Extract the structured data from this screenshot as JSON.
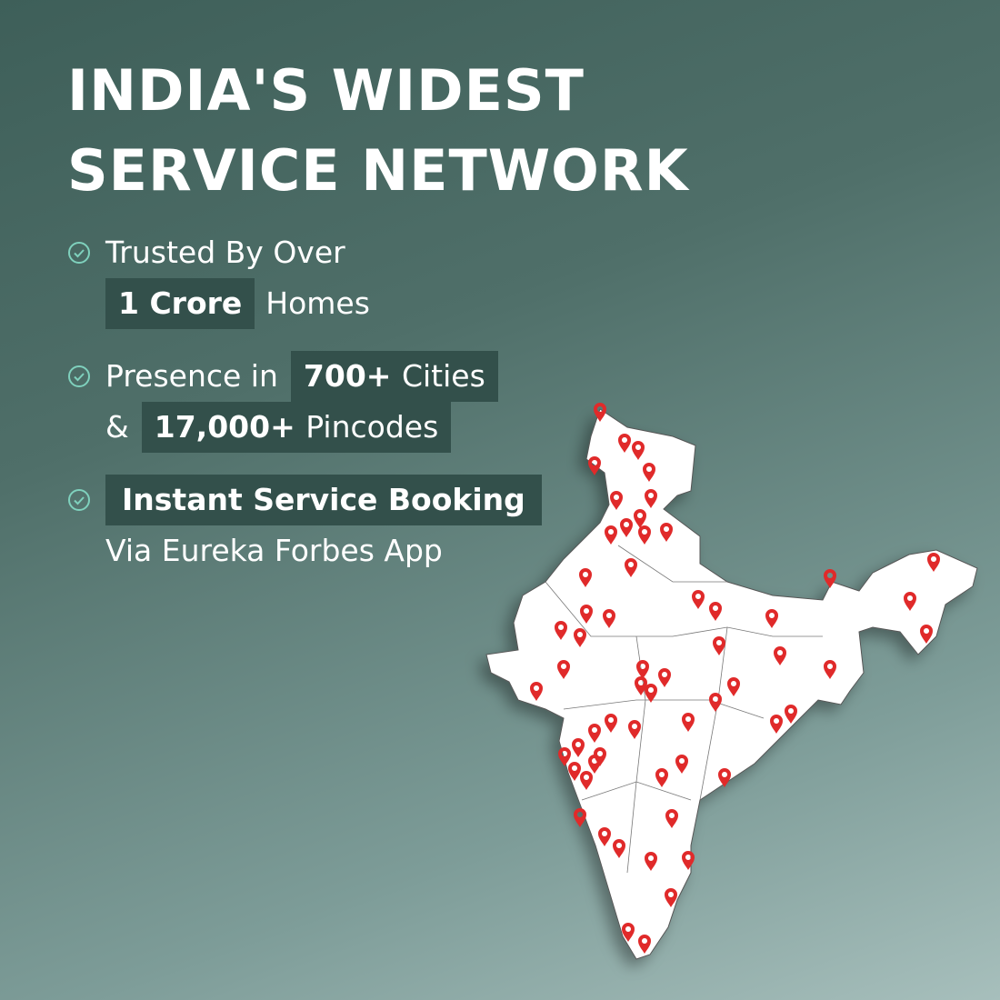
{
  "headline": {
    "line1": "INDIA'S WIDEST",
    "line2": "SERVICE NETWORK"
  },
  "features": [
    {
      "icon": "check-circle-icon",
      "text_before": "Trusted By Over",
      "highlight": "1 Crore",
      "text_after": "Homes"
    },
    {
      "icon": "check-circle-icon",
      "text_before": "Presence in",
      "highlight": "700+",
      "highlight_tail": "Cities",
      "connector": "&",
      "highlight2": "17,000+",
      "highlight2_tail": "Pincodes"
    },
    {
      "icon": "check-circle-icon",
      "highlight": "Instant Service Booking",
      "text_after": "Via Eureka Forbes App"
    }
  ],
  "colors": {
    "background": "#4a6a64",
    "highlight_bg": "#33504b",
    "check": "#7fd1bd",
    "pin": "#e02a2a",
    "map_fill": "#ffffff"
  },
  "map": {
    "icon": "india-map",
    "marker_icon": "location-pin-icon"
  }
}
